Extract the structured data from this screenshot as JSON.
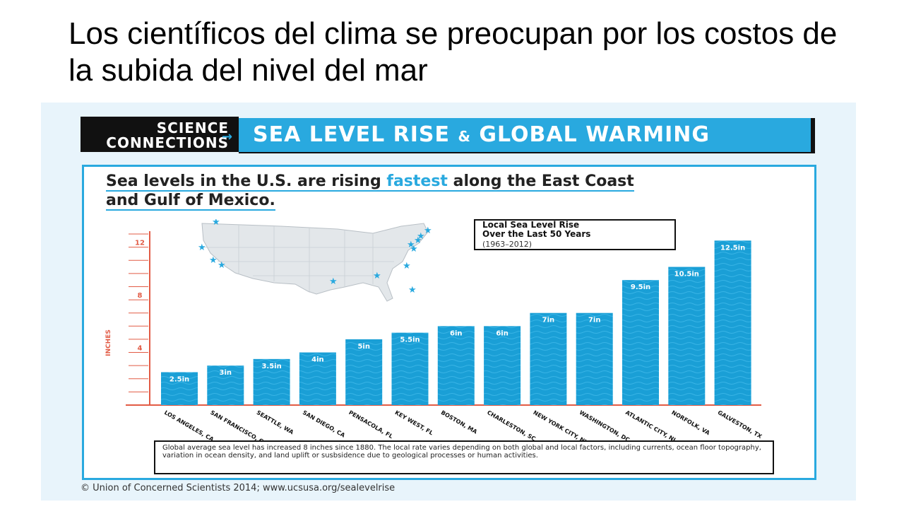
{
  "slide": {
    "title": "Los científicos del clima se preocupan por los costos de la subida del nivel del mar"
  },
  "banner": {
    "left_line1": "SCIENCE",
    "left_line2": "CONNECTIONS",
    "right_title_part1": "SEA LEVEL RISE",
    "right_title_amp": "&",
    "right_title_part2": "GLOBAL WARMING"
  },
  "headline": {
    "part1": "Sea levels in the U.S. are rising ",
    "highlight": "fastest",
    "part2": " along the East Coast",
    "line2": "and Gulf of Mexico."
  },
  "legend": {
    "title_line1": "Local Sea Level Rise",
    "title_line2": "Over the Last 50 Years",
    "subtitle": "(1963–2012)"
  },
  "footer_note": "Global average sea level has increased 8 inches since 1880. The local rate varies depending on both global and local factors, including currents, ocean floor topography, variation in ocean density, and land uplift or susbsidence due to geological processes or human activities.",
  "credit": "© Union of Concerned Scientists 2014;  www.ucsusa.org/sealevelrise",
  "colors": {
    "accent": "#29a9df",
    "bar": "#1a9fd6",
    "axis": "#e25b45",
    "dark": "#111111"
  },
  "chart_data": {
    "type": "bar",
    "ylabel": "INCHES",
    "ylim": [
      0,
      13
    ],
    "yticks": [
      "4",
      "8",
      "12"
    ],
    "ytick_values": [
      4,
      8,
      12
    ],
    "categories": [
      "LOS ANGELES, CA",
      "SAN FRANCISCO, CA",
      "SEATTLE, WA",
      "SAN DIEGO, CA",
      "PENSACOLA, FL",
      "KEY WEST, FL",
      "BOSTON, MA",
      "CHARLESTON, SC",
      "NEW YORK CITY, NY",
      "WASHINGTON, DC",
      "ATLANTIC CITY, NJ",
      "NORFOLK, VA",
      "GALVESTON, TX"
    ],
    "values": [
      2.5,
      3,
      3.5,
      4,
      5,
      5.5,
      6,
      6,
      7,
      7,
      9.5,
      10.5,
      12.5
    ],
    "data_labels": [
      "2.5in",
      "3in",
      "3.5in",
      "4in",
      "5in",
      "5.5in",
      "6in",
      "6in",
      "7in",
      "7in",
      "9.5in",
      "10.5in",
      "12.5in"
    ],
    "grid": false
  }
}
